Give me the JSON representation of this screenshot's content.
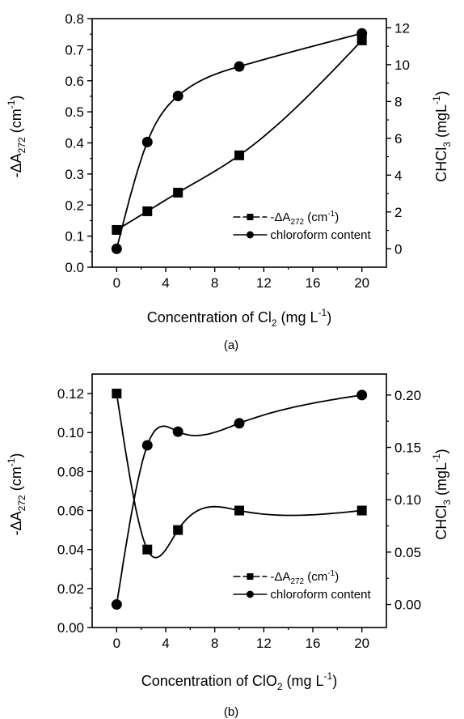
{
  "chart_data": [
    {
      "panel_label": "(a)",
      "type": "line",
      "xlabel_text": "Concentration of Cl",
      "xlabel_sub": "2",
      "xlabel_unit": "(mg L",
      "xlabel_unit_sup": "-1",
      "xlabel_close": ")",
      "ylabel_left_pre": "-ΔA",
      "ylabel_left_sub": "272",
      "ylabel_left_unit": "(cm",
      "ylabel_left_sup": "-1",
      "ylabel_left_close": ")",
      "ylabel_right_pre": "CHCl",
      "ylabel_right_sub": "3",
      "ylabel_right_unit": "(mgL",
      "ylabel_right_sup": "-1",
      "ylabel_right_close": ")",
      "xlim": [
        -2,
        22
      ],
      "ylim_left": [
        0.0,
        0.8
      ],
      "ylim_right": [
        -1.0,
        12.5
      ],
      "xticks": [
        0,
        4,
        8,
        12,
        16,
        20
      ],
      "xtick_labels": [
        "0",
        "4",
        "8",
        "12",
        "16",
        "20"
      ],
      "yticks_left": [
        0.0,
        0.1,
        0.2,
        0.3,
        0.4,
        0.5,
        0.6,
        0.7,
        0.8
      ],
      "ytick_labels_left": [
        "0.0",
        "0.1",
        "0.2",
        "0.3",
        "0.4",
        "0.5",
        "0.6",
        "0.7",
        "0.8"
      ],
      "yticks_right": [
        0,
        2,
        4,
        6,
        8,
        10,
        12
      ],
      "ytick_labels_right": [
        "0",
        "2",
        "4",
        "6",
        "8",
        "10",
        "12"
      ],
      "legend_position": "lower-right",
      "series": [
        {
          "legend_pre": "-ΔA",
          "legend_sub": "272",
          "legend_post": "(cm",
          "legend_sup": "-1",
          "legend_close": ")",
          "axis": "left",
          "marker": "square",
          "x": [
            0,
            2.5,
            5,
            10,
            20
          ],
          "y": [
            0.12,
            0.18,
            0.24,
            0.36,
            0.73
          ]
        },
        {
          "legend_text": "chloroform content",
          "axis": "right",
          "marker": "circle",
          "x": [
            0,
            2.5,
            5,
            10,
            20
          ],
          "y": [
            0.0,
            5.8,
            8.3,
            9.9,
            11.7
          ]
        }
      ]
    },
    {
      "panel_label": "(b)",
      "type": "line",
      "xlabel_text": "Concentration of ClO",
      "xlabel_sub": "2",
      "xlabel_unit": "(mg L",
      "xlabel_unit_sup": "-1",
      "xlabel_close": ")",
      "ylabel_left_pre": "-ΔA",
      "ylabel_left_sub": "272",
      "ylabel_left_unit": "(cm",
      "ylabel_left_sup": "-1",
      "ylabel_left_close": ")",
      "ylabel_right_pre": "CHCl",
      "ylabel_right_sub": "3",
      "ylabel_right_unit": "(mgL",
      "ylabel_right_sup": "-1",
      "ylabel_right_close": ")",
      "xlim": [
        -2,
        22
      ],
      "ylim_left": [
        0.0,
        0.13
      ],
      "ylim_right": [
        -0.022,
        0.22
      ],
      "xticks": [
        0,
        4,
        8,
        12,
        16,
        20
      ],
      "xtick_labels": [
        "0",
        "4",
        "8",
        "12",
        "16",
        "20"
      ],
      "yticks_left": [
        0.0,
        0.02,
        0.04,
        0.06,
        0.08,
        0.1,
        0.12
      ],
      "ytick_labels_left": [
        "0.00",
        "0.02",
        "0.04",
        "0.06",
        "0.08",
        "0.10",
        "0.12"
      ],
      "yticks_right": [
        0.0,
        0.05,
        0.1,
        0.15,
        0.2
      ],
      "ytick_labels_right": [
        "0.00",
        "0.05",
        "0.10",
        "0.15",
        "0.20"
      ],
      "legend_position": "lower-right",
      "series": [
        {
          "legend_pre": "-ΔA",
          "legend_sub": "272",
          "legend_post": "(cm",
          "legend_sup": "-1",
          "legend_close": ")",
          "axis": "left",
          "marker": "square",
          "x": [
            0,
            2.5,
            5,
            10,
            20
          ],
          "y": [
            0.12,
            0.04,
            0.05,
            0.06,
            0.06
          ]
        },
        {
          "legend_text": "chloroform content",
          "axis": "right",
          "marker": "circle",
          "x": [
            0,
            2.5,
            5,
            10,
            20
          ],
          "y": [
            0.0,
            0.152,
            0.165,
            0.173,
            0.2
          ]
        }
      ]
    }
  ]
}
